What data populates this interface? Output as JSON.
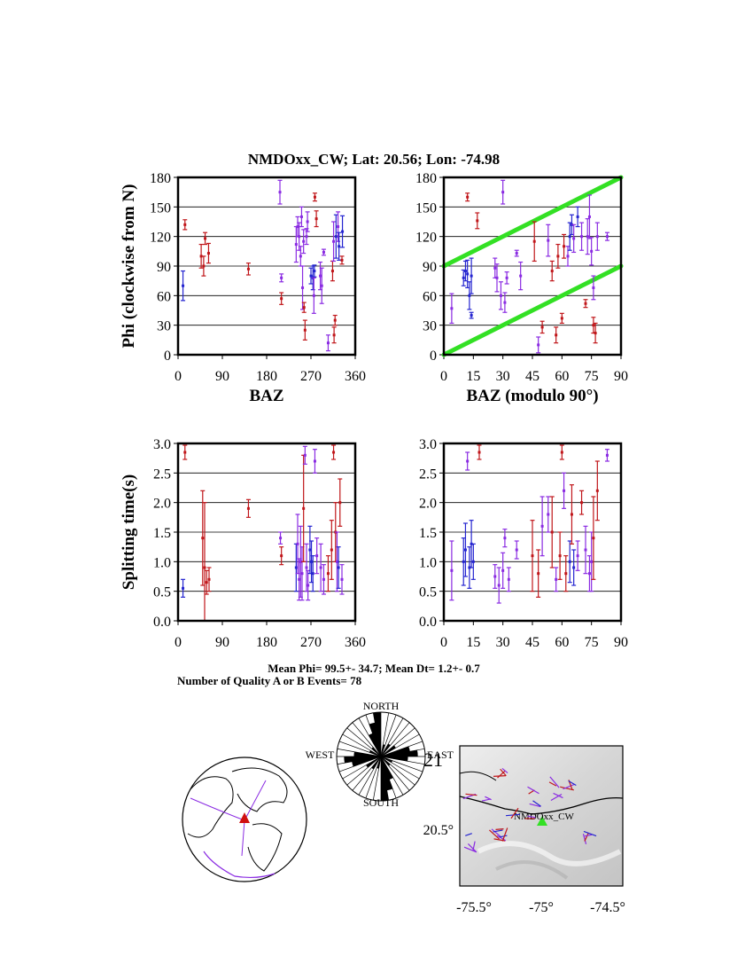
{
  "title": "NMDOxx_CW; Lat:  20.56;  Lon:  -74.98",
  "station_label": "NMDOxx_CW",
  "colors": {
    "red": "#c0161a",
    "purple": "#8a2be2",
    "blue": "#2424d0",
    "green": "#33e024"
  },
  "stats": {
    "mean_line": "Mean Phi= 99.5+- 34.7; Mean Dt=  1.2+-  0.7",
    "count_line": "Number of Quality A or B Events= 78"
  },
  "rose": {
    "north": "NORTH",
    "south": "SOUTH",
    "east": "EAST",
    "west": "WEST",
    "overlap_label": "21"
  },
  "map": {
    "lat_label": "20.5°",
    "lon_labels": [
      "-75.5°",
      "-75°",
      "-74.5°"
    ]
  },
  "chart_data": [
    {
      "id": "phi_baz",
      "type": "scatter",
      "xlabel": "BAZ",
      "ylabel": "Phi (clockwise from N)",
      "xlim": [
        0,
        360
      ],
      "ylim": [
        0,
        180
      ],
      "xticks": [
        "0",
        "90",
        "180",
        "270",
        "360"
      ],
      "yticks": [
        "0",
        "30",
        "60",
        "90",
        "120",
        "150",
        "180"
      ],
      "points": [
        {
          "x": 10,
          "y": 70,
          "e": 15,
          "c": "blue"
        },
        {
          "x": 14,
          "y": 132,
          "e": 5,
          "c": "red"
        },
        {
          "x": 47,
          "y": 100,
          "e": 12,
          "c": "red"
        },
        {
          "x": 52,
          "y": 90,
          "e": 10,
          "c": "red"
        },
        {
          "x": 55,
          "y": 118,
          "e": 6,
          "c": "red"
        },
        {
          "x": 62,
          "y": 103,
          "e": 10,
          "c": "red"
        },
        {
          "x": 143,
          "y": 87,
          "e": 6,
          "c": "red"
        },
        {
          "x": 207,
          "y": 165,
          "e": 12,
          "c": "purple"
        },
        {
          "x": 210,
          "y": 78,
          "e": 4,
          "c": "purple"
        },
        {
          "x": 210,
          "y": 57,
          "e": 6,
          "c": "red"
        },
        {
          "x": 240,
          "y": 112,
          "e": 18,
          "c": "purple"
        },
        {
          "x": 243,
          "y": 130,
          "e": 10,
          "c": "purple"
        },
        {
          "x": 246,
          "y": 120,
          "e": 14,
          "c": "purple"
        },
        {
          "x": 249,
          "y": 100,
          "e": 10,
          "c": "purple"
        },
        {
          "x": 251,
          "y": 140,
          "e": 10,
          "c": "purple"
        },
        {
          "x": 253,
          "y": 68,
          "e": 22,
          "c": "purple"
        },
        {
          "x": 256,
          "y": 48,
          "e": 5,
          "c": "red"
        },
        {
          "x": 258,
          "y": 25,
          "e": 10,
          "c": "red"
        },
        {
          "x": 255,
          "y": 115,
          "e": 12,
          "c": "purple"
        },
        {
          "x": 261,
          "y": 120,
          "e": 8,
          "c": "purple"
        },
        {
          "x": 263,
          "y": 135,
          "e": 10,
          "c": "purple"
        },
        {
          "x": 270,
          "y": 80,
          "e": 8,
          "c": "blue"
        },
        {
          "x": 274,
          "y": 78,
          "e": 12,
          "c": "blue"
        },
        {
          "x": 277,
          "y": 85,
          "e": 6,
          "c": "blue"
        },
        {
          "x": 276,
          "y": 60,
          "e": 18,
          "c": "purple"
        },
        {
          "x": 278,
          "y": 160,
          "e": 4,
          "c": "red"
        },
        {
          "x": 281,
          "y": 138,
          "e": 8,
          "c": "red"
        },
        {
          "x": 289,
          "y": 80,
          "e": 14,
          "c": "purple"
        },
        {
          "x": 292,
          "y": 70,
          "e": 18,
          "c": "purple"
        },
        {
          "x": 296,
          "y": 104,
          "e": 3,
          "c": "purple"
        },
        {
          "x": 305,
          "y": 12,
          "e": 8,
          "c": "purple"
        },
        {
          "x": 314,
          "y": 85,
          "e": 10,
          "c": "red"
        },
        {
          "x": 317,
          "y": 20,
          "e": 8,
          "c": "red"
        },
        {
          "x": 319,
          "y": 35,
          "e": 5,
          "c": "red"
        },
        {
          "x": 316,
          "y": 115,
          "e": 20,
          "c": "purple"
        },
        {
          "x": 321,
          "y": 120,
          "e": 22,
          "c": "blue"
        },
        {
          "x": 325,
          "y": 130,
          "e": 15,
          "c": "purple"
        },
        {
          "x": 327,
          "y": 110,
          "e": 14,
          "c": "blue"
        },
        {
          "x": 333,
          "y": 96,
          "e": 4,
          "c": "red"
        },
        {
          "x": 334,
          "y": 125,
          "e": 16,
          "c": "blue"
        }
      ]
    },
    {
      "id": "phi_baz_mod90",
      "type": "scatter",
      "xlabel": "BAZ (modulo 90°)",
      "ylabel": "",
      "xlim": [
        0,
        90
      ],
      "ylim": [
        0,
        180
      ],
      "xticks": [
        "0",
        "15",
        "30",
        "45",
        "60",
        "75",
        "90"
      ],
      "yticks": [
        "0",
        "30",
        "60",
        "90",
        "120",
        "150",
        "180"
      ],
      "lines": [
        {
          "x": [
            0,
            90
          ],
          "y": [
            90,
            180
          ]
        },
        {
          "x": [
            0,
            90
          ],
          "y": [
            0,
            90
          ]
        }
      ],
      "points": [
        {
          "x": 4,
          "y": 47,
          "e": 15,
          "c": "purple"
        },
        {
          "x": 10,
          "y": 78,
          "e": 8,
          "c": "blue"
        },
        {
          "x": 11,
          "y": 85,
          "e": 10,
          "c": "blue"
        },
        {
          "x": 12,
          "y": 82,
          "e": 14,
          "c": "blue"
        },
        {
          "x": 13,
          "y": 60,
          "e": 14,
          "c": "blue"
        },
        {
          "x": 14,
          "y": 40,
          "e": 3,
          "c": "blue"
        },
        {
          "x": 14,
          "y": 80,
          "e": 18,
          "c": "blue"
        },
        {
          "x": 12,
          "y": 160,
          "e": 4,
          "c": "red"
        },
        {
          "x": 17,
          "y": 136,
          "e": 8,
          "c": "red"
        },
        {
          "x": 26,
          "y": 88,
          "e": 10,
          "c": "purple"
        },
        {
          "x": 27,
          "y": 78,
          "e": 14,
          "c": "purple"
        },
        {
          "x": 29,
          "y": 60,
          "e": 14,
          "c": "purple"
        },
        {
          "x": 31,
          "y": 53,
          "e": 10,
          "c": "purple"
        },
        {
          "x": 30,
          "y": 165,
          "e": 12,
          "c": "purple"
        },
        {
          "x": 32,
          "y": 78,
          "e": 6,
          "c": "purple"
        },
        {
          "x": 37,
          "y": 103,
          "e": 3,
          "c": "purple"
        },
        {
          "x": 39,
          "y": 80,
          "e": 14,
          "c": "purple"
        },
        {
          "x": 48,
          "y": 10,
          "e": 8,
          "c": "purple"
        },
        {
          "x": 50,
          "y": 28,
          "e": 6,
          "c": "red"
        },
        {
          "x": 46,
          "y": 115,
          "e": 20,
          "c": "red"
        },
        {
          "x": 53,
          "y": 116,
          "e": 16,
          "c": "purple"
        },
        {
          "x": 55,
          "y": 85,
          "e": 10,
          "c": "red"
        },
        {
          "x": 57,
          "y": 20,
          "e": 8,
          "c": "red"
        },
        {
          "x": 58,
          "y": 100,
          "e": 12,
          "c": "red"
        },
        {
          "x": 60,
          "y": 37,
          "e": 5,
          "c": "red"
        },
        {
          "x": 61,
          "y": 110,
          "e": 12,
          "c": "red"
        },
        {
          "x": 63,
          "y": 100,
          "e": 10,
          "c": "purple"
        },
        {
          "x": 64,
          "y": 120,
          "e": 14,
          "c": "blue"
        },
        {
          "x": 65,
          "y": 132,
          "e": 10,
          "c": "blue"
        },
        {
          "x": 66,
          "y": 118,
          "e": 14,
          "c": "purple"
        },
        {
          "x": 68,
          "y": 140,
          "e": 10,
          "c": "blue"
        },
        {
          "x": 70,
          "y": 120,
          "e": 14,
          "c": "purple"
        },
        {
          "x": 72,
          "y": 52,
          "e": 4,
          "c": "red"
        },
        {
          "x": 73,
          "y": 120,
          "e": 18,
          "c": "purple"
        },
        {
          "x": 74,
          "y": 140,
          "e": 22,
          "c": "purple"
        },
        {
          "x": 75,
          "y": 105,
          "e": 14,
          "c": "purple"
        },
        {
          "x": 76,
          "y": 68,
          "e": 12,
          "c": "purple"
        },
        {
          "x": 76,
          "y": 30,
          "e": 8,
          "c": "red"
        },
        {
          "x": 77,
          "y": 22,
          "e": 10,
          "c": "red"
        },
        {
          "x": 78,
          "y": 120,
          "e": 14,
          "c": "purple"
        },
        {
          "x": 83,
          "y": 120,
          "e": 4,
          "c": "purple"
        }
      ]
    },
    {
      "id": "dt_baz",
      "type": "scatter",
      "xlabel": "",
      "ylabel": "Splitting time(s)",
      "xlim": [
        0,
        360
      ],
      "ylim": [
        0,
        3
      ],
      "xticks": [
        "0",
        "90",
        "180",
        "270",
        "360"
      ],
      "yticks": [
        "0.0",
        "0.5",
        "1.0",
        "1.5",
        "2.0",
        "2.5",
        "3.0"
      ],
      "points": [
        {
          "x": 10,
          "y": 0.55,
          "e": 0.15,
          "c": "blue"
        },
        {
          "x": 14,
          "y": 2.85,
          "e": 0.12,
          "c": "red"
        },
        {
          "x": 50,
          "y": 1.4,
          "e": 0.8,
          "c": "red"
        },
        {
          "x": 54,
          "y": 0.9,
          "e": 1.1,
          "c": "red"
        },
        {
          "x": 58,
          "y": 0.65,
          "e": 0.2,
          "c": "red"
        },
        {
          "x": 63,
          "y": 0.7,
          "e": 0.2,
          "c": "red"
        },
        {
          "x": 143,
          "y": 1.9,
          "e": 0.15,
          "c": "red"
        },
        {
          "x": 208,
          "y": 1.4,
          "e": 0.1,
          "c": "purple"
        },
        {
          "x": 210,
          "y": 1.1,
          "e": 0.15,
          "c": "red"
        },
        {
          "x": 240,
          "y": 0.9,
          "e": 0.4,
          "c": "blue"
        },
        {
          "x": 243,
          "y": 1.3,
          "e": 0.5,
          "c": "purple"
        },
        {
          "x": 246,
          "y": 0.7,
          "e": 0.35,
          "c": "purple"
        },
        {
          "x": 249,
          "y": 1.0,
          "e": 0.6,
          "c": "purple"
        },
        {
          "x": 252,
          "y": 0.8,
          "e": 0.45,
          "c": "purple"
        },
        {
          "x": 255,
          "y": 1.9,
          "e": 0.9,
          "c": "red"
        },
        {
          "x": 258,
          "y": 2.8,
          "e": 0.15,
          "c": "purple"
        },
        {
          "x": 261,
          "y": 0.9,
          "e": 0.4,
          "c": "purple"
        },
        {
          "x": 264,
          "y": 0.6,
          "e": 0.25,
          "c": "purple"
        },
        {
          "x": 268,
          "y": 1.2,
          "e": 0.4,
          "c": "blue"
        },
        {
          "x": 271,
          "y": 1.0,
          "e": 0.35,
          "c": "blue"
        },
        {
          "x": 274,
          "y": 0.8,
          "e": 0.3,
          "c": "blue"
        },
        {
          "x": 278,
          "y": 2.7,
          "e": 0.2,
          "c": "purple"
        },
        {
          "x": 282,
          "y": 1.1,
          "e": 0.3,
          "c": "purple"
        },
        {
          "x": 290,
          "y": 0.9,
          "e": 0.4,
          "c": "purple"
        },
        {
          "x": 296,
          "y": 0.7,
          "e": 0.25,
          "c": "purple"
        },
        {
          "x": 305,
          "y": 0.8,
          "e": 0.3,
          "c": "red"
        },
        {
          "x": 312,
          "y": 1.2,
          "e": 0.5,
          "c": "red"
        },
        {
          "x": 316,
          "y": 2.85,
          "e": 0.12,
          "c": "red"
        },
        {
          "x": 320,
          "y": 1.5,
          "e": 0.5,
          "c": "red"
        },
        {
          "x": 323,
          "y": 1.0,
          "e": 0.5,
          "c": "purple"
        },
        {
          "x": 326,
          "y": 0.9,
          "e": 0.35,
          "c": "blue"
        },
        {
          "x": 329,
          "y": 2.0,
          "e": 0.4,
          "c": "red"
        },
        {
          "x": 333,
          "y": 0.7,
          "e": 0.25,
          "c": "purple"
        }
      ]
    },
    {
      "id": "dt_baz_mod90",
      "type": "scatter",
      "xlabel": "",
      "ylabel": "",
      "xlim": [
        0,
        90
      ],
      "ylim": [
        0,
        3
      ],
      "xticks": [
        "0",
        "15",
        "30",
        "45",
        "60",
        "75",
        "90"
      ],
      "yticks": [
        "0.0",
        "0.5",
        "1.0",
        "1.5",
        "2.0",
        "2.5",
        "3.0"
      ],
      "points": [
        {
          "x": 4,
          "y": 0.85,
          "e": 0.5,
          "c": "purple"
        },
        {
          "x": 10,
          "y": 1.0,
          "e": 0.4,
          "c": "blue"
        },
        {
          "x": 11,
          "y": 1.2,
          "e": 0.45,
          "c": "blue"
        },
        {
          "x": 12,
          "y": 2.7,
          "e": 0.15,
          "c": "purple"
        },
        {
          "x": 13,
          "y": 0.9,
          "e": 0.35,
          "c": "blue"
        },
        {
          "x": 14,
          "y": 1.3,
          "e": 0.4,
          "c": "blue"
        },
        {
          "x": 15,
          "y": 1.0,
          "e": 0.3,
          "c": "blue"
        },
        {
          "x": 18,
          "y": 2.85,
          "e": 0.12,
          "c": "red"
        },
        {
          "x": 26,
          "y": 0.75,
          "e": 0.2,
          "c": "purple"
        },
        {
          "x": 28,
          "y": 0.6,
          "e": 0.3,
          "c": "purple"
        },
        {
          "x": 30,
          "y": 0.85,
          "e": 0.3,
          "c": "purple"
        },
        {
          "x": 31,
          "y": 1.4,
          "e": 0.15,
          "c": "purple"
        },
        {
          "x": 33,
          "y": 0.7,
          "e": 0.2,
          "c": "purple"
        },
        {
          "x": 37,
          "y": 1.2,
          "e": 0.15,
          "c": "purple"
        },
        {
          "x": 45,
          "y": 1.1,
          "e": 0.6,
          "c": "red"
        },
        {
          "x": 48,
          "y": 0.8,
          "e": 0.4,
          "c": "red"
        },
        {
          "x": 50,
          "y": 1.6,
          "e": 0.5,
          "c": "purple"
        },
        {
          "x": 53,
          "y": 1.8,
          "e": 0.3,
          "c": "purple"
        },
        {
          "x": 55,
          "y": 1.5,
          "e": 0.6,
          "c": "red"
        },
        {
          "x": 57,
          "y": 0.7,
          "e": 0.2,
          "c": "purple"
        },
        {
          "x": 59,
          "y": 1.1,
          "e": 0.4,
          "c": "red"
        },
        {
          "x": 60,
          "y": 2.85,
          "e": 0.12,
          "c": "red"
        },
        {
          "x": 61,
          "y": 2.2,
          "e": 0.3,
          "c": "purple"
        },
        {
          "x": 62,
          "y": 0.8,
          "e": 0.3,
          "c": "red"
        },
        {
          "x": 64,
          "y": 1.0,
          "e": 0.35,
          "c": "blue"
        },
        {
          "x": 65,
          "y": 1.8,
          "e": 0.5,
          "c": "red"
        },
        {
          "x": 66,
          "y": 0.9,
          "e": 0.3,
          "c": "blue"
        },
        {
          "x": 68,
          "y": 1.1,
          "e": 0.25,
          "c": "purple"
        },
        {
          "x": 70,
          "y": 2.0,
          "e": 0.2,
          "c": "red"
        },
        {
          "x": 72,
          "y": 1.2,
          "e": 0.4,
          "c": "purple"
        },
        {
          "x": 74,
          "y": 0.8,
          "e": 0.3,
          "c": "purple"
        },
        {
          "x": 75,
          "y": 1.0,
          "e": 0.5,
          "c": "purple"
        },
        {
          "x": 76,
          "y": 1.4,
          "e": 0.7,
          "c": "red"
        },
        {
          "x": 78,
          "y": 2.2,
          "e": 0.5,
          "c": "red"
        },
        {
          "x": 83,
          "y": 2.8,
          "e": 0.1,
          "c": "purple"
        }
      ]
    },
    {
      "id": "rose",
      "type": "rose",
      "bin_deg": 10,
      "counts": [
        6,
        5,
        4,
        6,
        8,
        7,
        9,
        12,
        15,
        11,
        6,
        5,
        4,
        5,
        8,
        10,
        14,
        18
      ]
    }
  ]
}
